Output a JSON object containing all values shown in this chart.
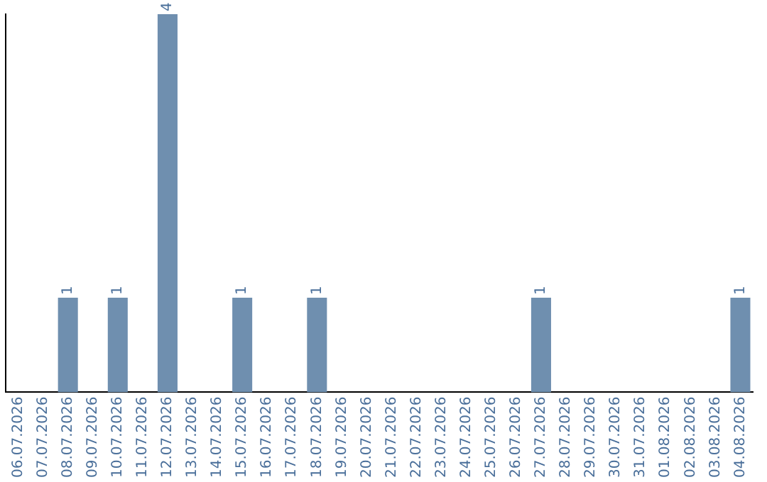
{
  "chart_data": {
    "type": "bar",
    "categories": [
      "06.07.2026",
      "07.07.2026",
      "08.07.2026",
      "09.07.2026",
      "10.07.2026",
      "11.07.2026",
      "12.07.2026",
      "13.07.2026",
      "14.07.2026",
      "15.07.2026",
      "16.07.2026",
      "17.07.2026",
      "18.07.2026",
      "19.07.2026",
      "20.07.2026",
      "21.07.2026",
      "22.07.2026",
      "23.07.2026",
      "24.07.2026",
      "25.07.2026",
      "26.07.2026",
      "27.07.2026",
      "28.07.2026",
      "29.07.2026",
      "30.07.2026",
      "31.07.2026",
      "01.08.2026",
      "02.08.2026",
      "03.08.2026",
      "04.08.2026"
    ],
    "values": [
      0,
      0,
      1,
      0,
      1,
      0,
      4,
      0,
      0,
      1,
      0,
      0,
      1,
      0,
      0,
      0,
      0,
      0,
      0,
      0,
      0,
      1,
      0,
      0,
      0,
      0,
      0,
      0,
      0,
      1
    ],
    "value_labels": [
      null,
      null,
      "1",
      null,
      "1",
      null,
      "4",
      null,
      null,
      "1",
      null,
      null,
      "1",
      null,
      null,
      null,
      null,
      null,
      null,
      null,
      null,
      "1",
      null,
      null,
      null,
      null,
      null,
      null,
      null,
      "1"
    ],
    "color": "#6f8faf",
    "tick_labels": "x",
    "grid": false
  }
}
